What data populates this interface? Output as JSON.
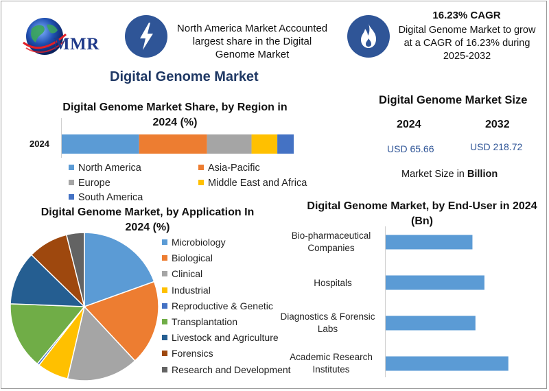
{
  "header": {
    "logo_text": "MMR",
    "info1_text": "North America Market Accounted largest share in the Digital Genome Market",
    "cagr_title": "16.23% CAGR",
    "cagr_text": "Digital Genome Market to grow at a CAGR of 16.23% during 2025-2032"
  },
  "page_title": "Digital Genome Market",
  "market_size": {
    "title": "Digital Genome Market Size",
    "year1": "2024",
    "year2": "2032",
    "value1": "USD 65.66",
    "value2": "USD 218.72",
    "note_prefix": "Market Size in ",
    "note_bold": "Billion"
  },
  "icons": {
    "logo": "globe-icon",
    "info1": "lightning-bolt-icon",
    "cagr": "flame-icon"
  },
  "chart_data": [
    {
      "type": "bar",
      "orientation": "horizontal-stacked",
      "title": "Digital Genome Market Share, by Region in 2024 (%)",
      "categories": [
        "2024"
      ],
      "series": [
        {
          "name": "North America",
          "values": [
            33
          ],
          "color": "#5b9bd5"
        },
        {
          "name": "Asia-Pacific",
          "values": [
            29
          ],
          "color": "#ed7d31"
        },
        {
          "name": "Europe",
          "values": [
            19
          ],
          "color": "#a5a5a5"
        },
        {
          "name": "Middle East and Africa",
          "values": [
            11
          ],
          "color": "#ffc000"
        },
        {
          "name": "South America",
          "values": [
            7
          ],
          "color": "#4472c4"
        }
      ],
      "legend_position": "bottom"
    },
    {
      "type": "pie",
      "title": "Digital Genome Market, by Application In 2024 (%)",
      "labels": [
        "Microbiology",
        "Biological",
        "Clinical",
        "Industrial",
        "Reproductive & Genetic",
        "Transplantation",
        "Livestock and Agriculture",
        "Forensics",
        "Research and Development"
      ],
      "values": [
        20,
        19,
        16,
        7,
        0.5,
        15,
        12,
        9,
        4
      ],
      "colors": [
        "#5b9bd5",
        "#ed7d31",
        "#a5a5a5",
        "#ffc000",
        "#4472c4",
        "#70ad47",
        "#255e91",
        "#9e480e",
        "#636363"
      ],
      "legend_position": "right"
    },
    {
      "type": "bar",
      "orientation": "horizontal",
      "title": "Digital Genome Market, by End-User in 2024 (Bn)",
      "categories": [
        "Bio-pharmaceutical Companies",
        "Hospitals",
        "Diagnostics & Forensic Labs",
        "Academic Research Institutes"
      ],
      "values": [
        14.5,
        16.5,
        15,
        20.5
      ],
      "color": "#5b9bd5",
      "grid": false
    }
  ]
}
